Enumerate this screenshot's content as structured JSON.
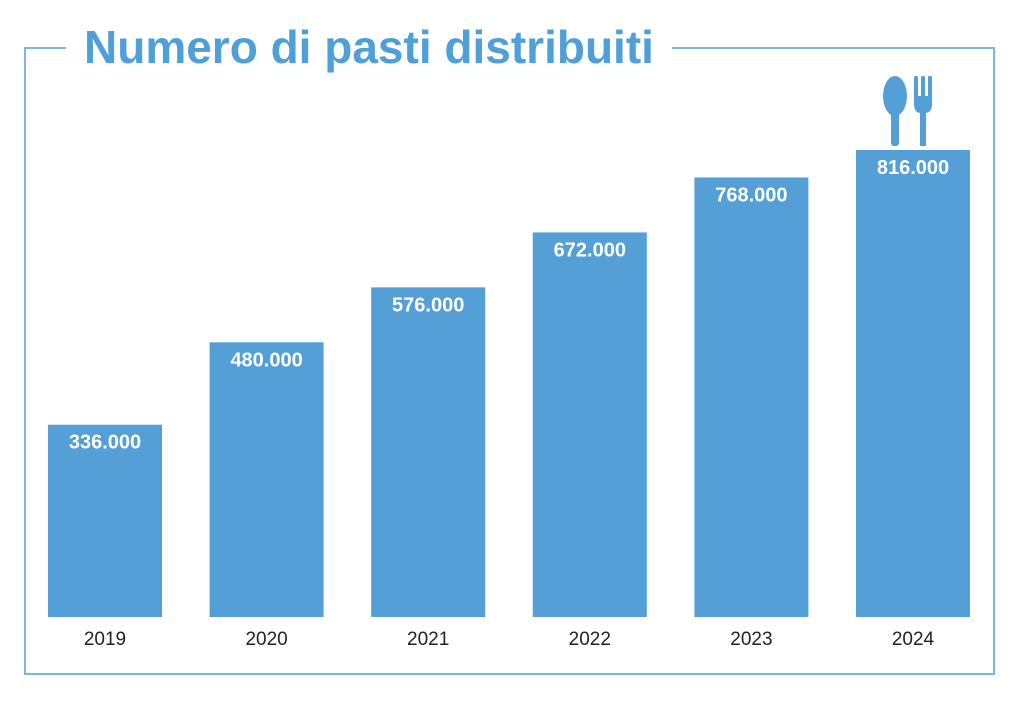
{
  "chart_data": {
    "type": "bar",
    "title": "Numero di pasti distribuiti",
    "xlabel": "",
    "ylabel": "",
    "categories": [
      "2019",
      "2020",
      "2021",
      "2022",
      "2023",
      "2024"
    ],
    "values": [
      336000,
      480000,
      576000,
      672000,
      768000,
      816000
    ],
    "value_labels": [
      "336.000",
      "480.000",
      "576.000",
      "672.000",
      "768.000",
      "816.000"
    ],
    "ylim": [
      0,
      816000
    ],
    "grid": false,
    "legend": "none",
    "colors": {
      "bar": "#539fd6",
      "title": "#4f9fd8",
      "frame": "#7fb5e0",
      "label": "#ffffff",
      "tick": "#222222"
    },
    "icons": {
      "top_bar": "spoon-and-fork-icon"
    }
  }
}
